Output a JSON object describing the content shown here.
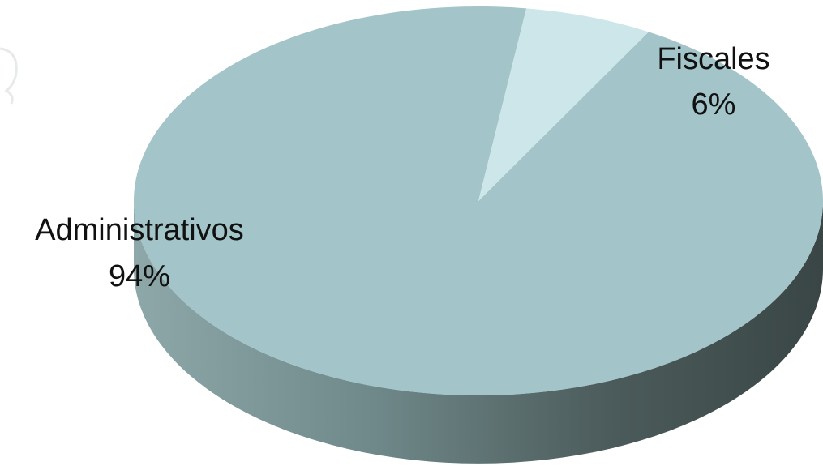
{
  "chart_data": {
    "type": "pie",
    "style": "3d",
    "title": "",
    "categories": [
      "Administrativos",
      "Fiscales"
    ],
    "values": [
      94,
      6
    ],
    "labels": [
      {
        "name": "Administrativos",
        "value": "94%"
      },
      {
        "name": "Fiscales",
        "value": "6%"
      }
    ],
    "colors": {
      "Administrativos": "#a3c4c8",
      "Fiscales": "#cde6e9",
      "side_light": "#8ea8aa",
      "side_dark": "#3f4c4c"
    }
  }
}
